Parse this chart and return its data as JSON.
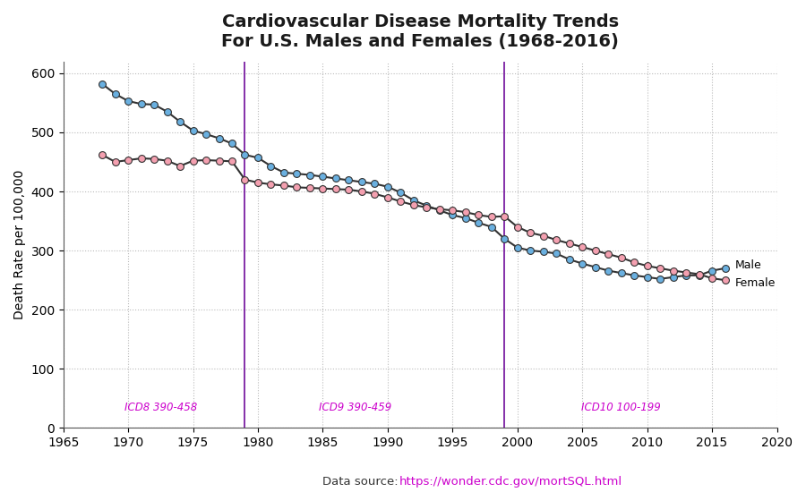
{
  "title": "Cardiovascular Disease Mortality Trends\nFor U.S. Males and Females (1968-2016)",
  "ylabel": "Death Rate per 100,000",
  "source_label": "Data source: ",
  "source_url": "https://wonder.cdc.gov/mortSQL.html",
  "xlim": [
    1965,
    2020
  ],
  "ylim": [
    0,
    620
  ],
  "yticks": [
    0,
    100,
    200,
    300,
    400,
    500,
    600
  ],
  "xticks": [
    1965,
    1970,
    1975,
    1980,
    1985,
    1990,
    1995,
    2000,
    2005,
    2010,
    2015,
    2020
  ],
  "vlines": [
    1979,
    1999
  ],
  "vline_color": "#7b1fa2",
  "icd_labels": [
    {
      "x": 1972.5,
      "text": "ICD8 390-458"
    },
    {
      "x": 1987.5,
      "text": "ICD9 390-459"
    },
    {
      "x": 2008.0,
      "text": "ICD10 100-199"
    }
  ],
  "icd_color": "#cc00cc",
  "male_color": "#6ab0e0",
  "female_color": "#f4a0b0",
  "line_color": "#333333",
  "male_years": [
    1968,
    1969,
    1970,
    1971,
    1972,
    1973,
    1974,
    1975,
    1976,
    1977,
    1978,
    1979,
    1980,
    1981,
    1982,
    1983,
    1984,
    1985,
    1986,
    1987,
    1988,
    1989,
    1990,
    1991,
    1992,
    1993,
    1994,
    1995,
    1996,
    1997,
    1998,
    1999,
    2000,
    2001,
    2002,
    2003,
    2004,
    2005,
    2006,
    2007,
    2008,
    2009,
    2010,
    2011,
    2012,
    2013,
    2014,
    2015,
    2016
  ],
  "male_values": [
    582,
    565,
    553,
    548,
    547,
    535,
    518,
    503,
    497,
    490,
    481,
    462,
    457,
    443,
    432,
    430,
    428,
    425,
    422,
    419,
    416,
    413,
    408,
    398,
    385,
    376,
    368,
    360,
    355,
    347,
    340,
    320,
    305,
    300,
    298,
    295,
    285,
    278,
    272,
    266,
    262,
    258,
    255,
    252,
    255,
    258,
    258,
    266,
    270
  ],
  "female_years": [
    1968,
    1969,
    1970,
    1971,
    1972,
    1973,
    1974,
    1975,
    1976,
    1977,
    1978,
    1979,
    1980,
    1981,
    1982,
    1983,
    1984,
    1985,
    1986,
    1987,
    1988,
    1989,
    1990,
    1991,
    1992,
    1993,
    1994,
    1995,
    1996,
    1997,
    1998,
    1999,
    2000,
    2001,
    2002,
    2003,
    2004,
    2005,
    2006,
    2007,
    2008,
    2009,
    2010,
    2011,
    2012,
    2013,
    2014,
    2015,
    2016
  ],
  "female_values": [
    462,
    450,
    453,
    456,
    455,
    452,
    443,
    452,
    453,
    452,
    451,
    420,
    415,
    412,
    410,
    407,
    406,
    405,
    404,
    403,
    400,
    396,
    390,
    383,
    377,
    373,
    370,
    368,
    365,
    360,
    357,
    358,
    340,
    330,
    325,
    318,
    312,
    306,
    300,
    294,
    288,
    280,
    274,
    270,
    266,
    263,
    260,
    253,
    250
  ],
  "background_color": "#ffffff",
  "grid_color": "#bbbbbb",
  "title_fontsize": 14,
  "label_fontsize": 10,
  "tick_fontsize": 10,
  "legend_fontsize": 9,
  "marker_size": 32
}
